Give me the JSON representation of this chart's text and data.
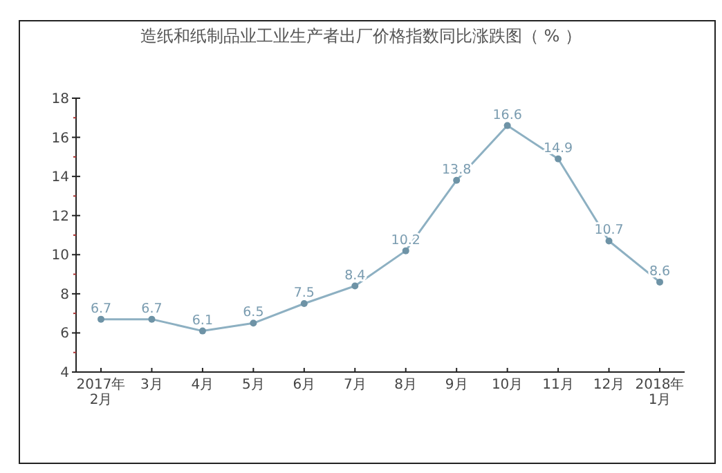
{
  "chart_data": {
    "type": "line",
    "title": "造纸和纸制品业工业生产者出厂价格指数同比涨跌图（ % ）",
    "categories": [
      "2017年\n2月",
      "3月",
      "4月",
      "5月",
      "6月",
      "7月",
      "8月",
      "9月",
      "10月",
      "11月",
      "12月",
      "2018年\n1月"
    ],
    "series": [
      {
        "color": "#8db0c2",
        "values": [
          6.7,
          6.7,
          6.1,
          6.5,
          7.5,
          8.4,
          10.2,
          13.8,
          16.6,
          14.9,
          10.7,
          8.6
        ]
      }
    ],
    "ylim": [
      4,
      18
    ],
    "yticks": [
      4,
      {
        "value": 5,
        "label": null
      },
      6,
      {
        "value": 7,
        "label": null
      },
      8,
      {
        "value": 9,
        "label": null
      },
      10,
      {
        "value": 11,
        "label": null
      },
      12,
      {
        "value": 13,
        "label": null
      },
      14,
      {
        "value": 15,
        "label": null
      },
      16,
      {
        "value": 17,
        "label": null
      },
      18
    ],
    "marker": "circle",
    "data_labels": true,
    "grid": false
  }
}
